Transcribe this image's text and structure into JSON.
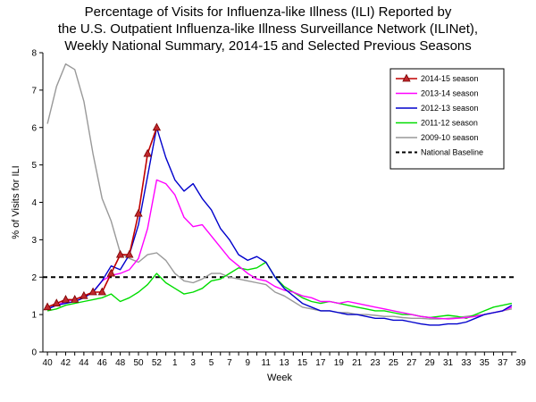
{
  "chart_data": {
    "type": "line",
    "title_lines": [
      "Percentage of Visits for Influenza-like Illness (ILI) Reported by",
      "the U.S. Outpatient Influenza-like Illness Surveillance Network (ILINet),",
      "Weekly National Summary, 2014-15 and Selected Previous Seasons"
    ],
    "xlabel": "Week",
    "ylabel": "% of Visits for ILI",
    "ylim": [
      0,
      8
    ],
    "yticks": [
      0,
      1,
      2,
      3,
      4,
      5,
      6,
      7,
      8
    ],
    "xtick_labels": [
      "40",
      "42",
      "44",
      "46",
      "48",
      "50",
      "52",
      "1",
      "3",
      "5",
      "7",
      "9",
      "11",
      "13",
      "15",
      "17",
      "19",
      "21",
      "23",
      "25",
      "27",
      "29",
      "31",
      "33",
      "35",
      "37",
      "39"
    ],
    "weeks": [
      40,
      41,
      42,
      43,
      44,
      45,
      46,
      47,
      48,
      49,
      50,
      51,
      52,
      1,
      2,
      3,
      4,
      5,
      6,
      7,
      8,
      9,
      10,
      11,
      12,
      13,
      14,
      15,
      16,
      17,
      18,
      19,
      20,
      21,
      22,
      23,
      24,
      25,
      26,
      27,
      28,
      29,
      30,
      31,
      32,
      33,
      34,
      35,
      36,
      37,
      38,
      39
    ],
    "baseline": {
      "name": "National Baseline",
      "value": 2.0
    },
    "series": [
      {
        "name": "2014-15 season",
        "color": "#c00000",
        "marker": "triangle",
        "values": [
          1.2,
          1.3,
          1.4,
          1.4,
          1.5,
          1.6,
          1.6,
          2.1,
          2.6,
          2.6,
          3.7,
          5.3,
          6.0
        ]
      },
      {
        "name": "2013-14 season",
        "color": "#ff00ff",
        "values": [
          1.15,
          1.25,
          1.35,
          1.4,
          1.5,
          1.6,
          1.9,
          2.05,
          2.1,
          2.2,
          2.5,
          3.3,
          4.6,
          4.5,
          4.2,
          3.6,
          3.35,
          3.4,
          3.1,
          2.8,
          2.5,
          2.3,
          2.1,
          1.95,
          1.9,
          1.75,
          1.65,
          1.6,
          1.5,
          1.45,
          1.35,
          1.35,
          1.3,
          1.35,
          1.3,
          1.25,
          1.2,
          1.15,
          1.1,
          1.05,
          1.0,
          0.95,
          0.92,
          0.9,
          0.88,
          0.9,
          0.92,
          0.95,
          1.0,
          1.05,
          1.1,
          1.2
        ]
      },
      {
        "name": "2012-13 season",
        "color": "#0000cc",
        "values": [
          1.15,
          1.25,
          1.3,
          1.35,
          1.45,
          1.6,
          1.9,
          2.3,
          2.2,
          2.6,
          3.4,
          4.7,
          6.0,
          5.2,
          4.6,
          4.3,
          4.5,
          4.1,
          3.8,
          3.3,
          3.0,
          2.6,
          2.45,
          2.55,
          2.4,
          2.0,
          1.7,
          1.5,
          1.3,
          1.2,
          1.1,
          1.1,
          1.05,
          1.0,
          1.0,
          0.95,
          0.9,
          0.9,
          0.85,
          0.85,
          0.8,
          0.75,
          0.72,
          0.72,
          0.75,
          0.75,
          0.8,
          0.9,
          1.0,
          1.05,
          1.1,
          1.25
        ]
      },
      {
        "name": "2011-12 season",
        "color": "#00dd00",
        "values": [
          1.1,
          1.15,
          1.25,
          1.3,
          1.35,
          1.4,
          1.45,
          1.55,
          1.35,
          1.45,
          1.6,
          1.8,
          2.1,
          1.85,
          1.7,
          1.55,
          1.6,
          1.7,
          1.9,
          1.95,
          2.1,
          2.25,
          2.2,
          2.25,
          2.4,
          2.0,
          1.75,
          1.6,
          1.45,
          1.35,
          1.3,
          1.35,
          1.3,
          1.25,
          1.2,
          1.15,
          1.1,
          1.1,
          1.05,
          1.0,
          1.0,
          0.95,
          0.92,
          0.95,
          0.98,
          0.95,
          0.9,
          1.0,
          1.1,
          1.2,
          1.25,
          1.3
        ]
      },
      {
        "name": "2009-10 season",
        "color": "#999999",
        "values": [
          6.1,
          7.1,
          7.7,
          7.55,
          6.7,
          5.3,
          4.1,
          3.5,
          2.65,
          2.5,
          2.4,
          2.6,
          2.65,
          2.45,
          2.1,
          1.9,
          1.85,
          1.95,
          2.1,
          2.1,
          2.0,
          1.95,
          1.9,
          1.85,
          1.8,
          1.6,
          1.5,
          1.35,
          1.2,
          1.15,
          1.1,
          1.1,
          1.05,
          1.05,
          1.0,
          1.0,
          0.98,
          0.95,
          0.95,
          0.92,
          0.9,
          0.9,
          0.88,
          0.88,
          0.9,
          0.92,
          0.95,
          0.98,
          1.0,
          1.05,
          1.1,
          1.15
        ]
      }
    ],
    "legend_position": "top-right"
  }
}
